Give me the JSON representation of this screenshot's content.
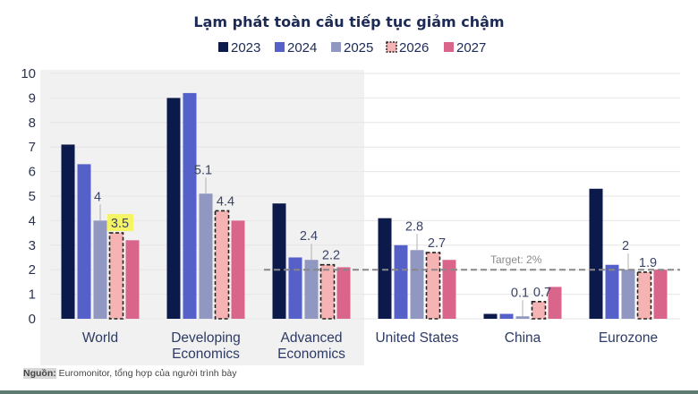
{
  "chart_data": {
    "type": "bar",
    "title": "Lạm phát toàn cầu tiếp tục giảm chậm",
    "categories": [
      "World",
      "Developing\nEconomics",
      "Advanced\nEconomics",
      "United States",
      "China",
      "Eurozone"
    ],
    "series": [
      {
        "name": "2023",
        "color": "#0b1a4a",
        "values": [
          7.1,
          9.0,
          4.7,
          4.1,
          0.2,
          5.3
        ]
      },
      {
        "name": "2024",
        "color": "#5560c8",
        "values": [
          6.3,
          9.2,
          2.5,
          3.0,
          0.2,
          2.2
        ]
      },
      {
        "name": "2025",
        "color": "#9097c0",
        "values": [
          4.0,
          5.1,
          2.4,
          2.8,
          0.1,
          2.0
        ]
      },
      {
        "name": "2026",
        "color": "#f6b3b3",
        "dashed": true,
        "values": [
          3.5,
          4.4,
          2.2,
          2.7,
          0.7,
          1.9
        ]
      },
      {
        "name": "2027",
        "color": "#d9668a",
        "values": [
          3.2,
          4.0,
          2.1,
          2.4,
          1.3,
          2.0
        ]
      }
    ],
    "data_labels": [
      {
        "category": 0,
        "series": 2,
        "text": "4"
      },
      {
        "category": 0,
        "series": 3,
        "text": "3.5",
        "highlight": "#f4f466"
      },
      {
        "category": 1,
        "series": 2,
        "text": "5.1"
      },
      {
        "category": 1,
        "series": 3,
        "text": "4.4"
      },
      {
        "category": 2,
        "series": 2,
        "text": "2.4"
      },
      {
        "category": 2,
        "series": 3,
        "text": "2.2"
      },
      {
        "category": 3,
        "series": 2,
        "text": "2.8"
      },
      {
        "category": 3,
        "series": 3,
        "text": "2.7"
      },
      {
        "category": 4,
        "series": 2,
        "text": "0.1"
      },
      {
        "category": 4,
        "series": 3,
        "text": "0.7"
      },
      {
        "category": 5,
        "series": 2,
        "text": "2"
      },
      {
        "category": 5,
        "series": 3,
        "text": "1.9"
      }
    ],
    "reference_line": {
      "value": 2,
      "label": "Target: 2%",
      "color": "#888888",
      "style": "dashed"
    },
    "ylim": [
      0,
      10
    ],
    "yticks": [
      0,
      1,
      2,
      3,
      4,
      5,
      6,
      7,
      8,
      9,
      10
    ],
    "xlabel": "",
    "ylabel": "",
    "grid": true,
    "legend": "top",
    "shaded_categories": [
      0,
      1,
      2
    ],
    "shade_color": "#f0f1f0"
  },
  "source": {
    "label": "Nguồn:",
    "text": " Euromonitor, tổng hợp của người trình bày"
  }
}
